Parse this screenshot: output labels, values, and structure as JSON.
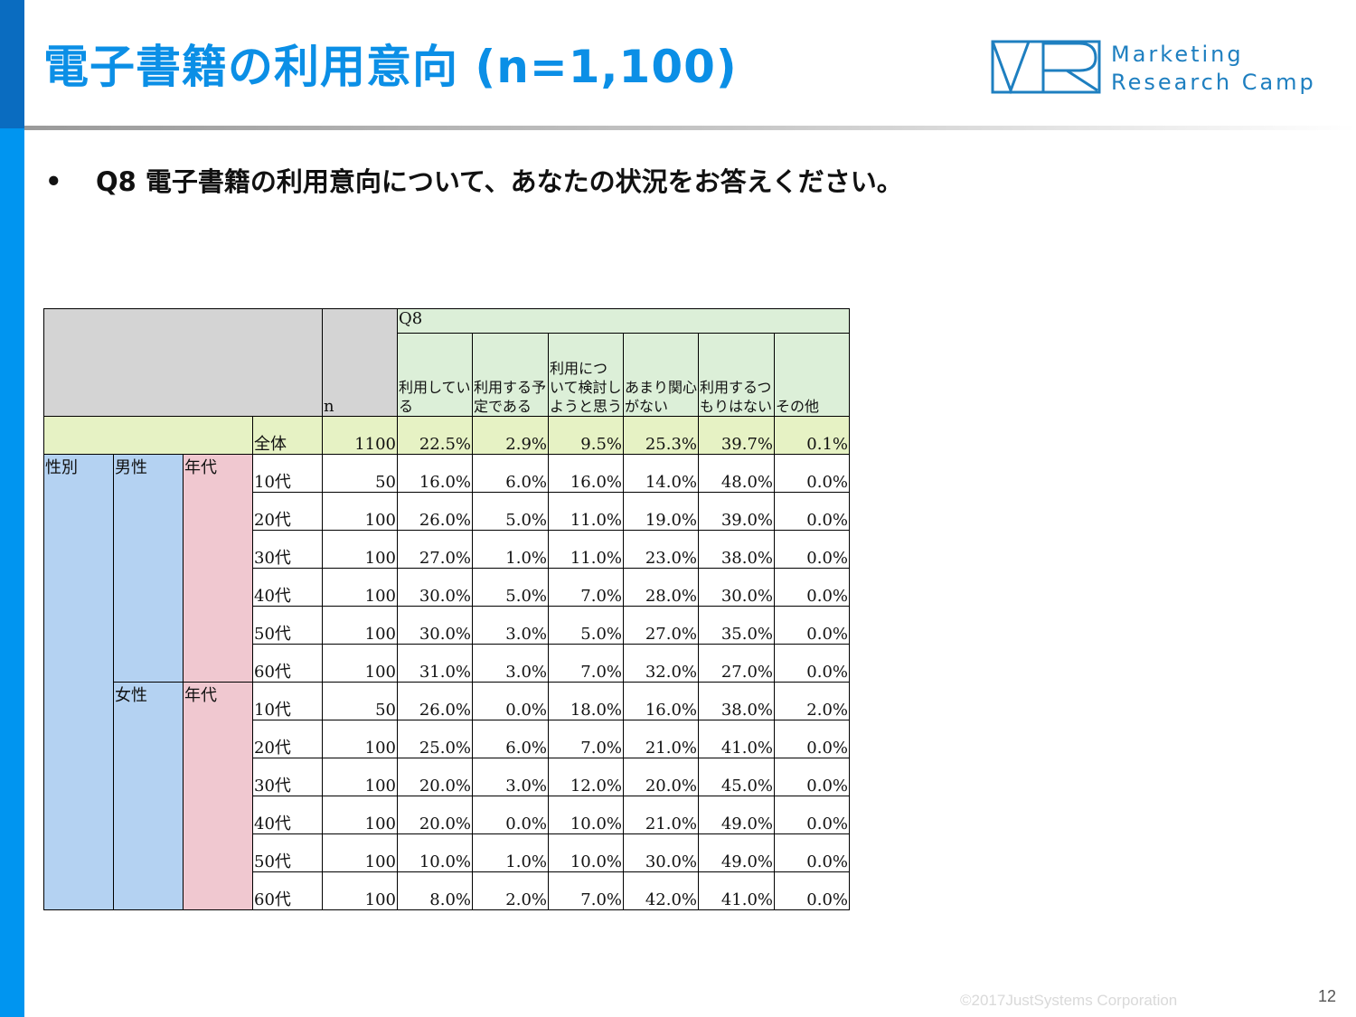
{
  "slide": {
    "title": "電子書籍の利用意向 (n=1,100)",
    "logo_line1": "Marketing",
    "logo_line2": "Research Camp",
    "bullet": "•",
    "question": "Q8 電子書籍の利用意向について、あなたの状況をお答えください。",
    "copyright": "©2017JustSystems Corporation",
    "page_number": "12"
  },
  "colors": {
    "title_blue": "#0b8fe6",
    "sidebar_blue": "#0095f0",
    "header_gray": "#d4d4d4",
    "header_green": "#dcefd8",
    "total_yellow": "#e6f2c4",
    "gender_blue": "#b4d2f2",
    "age_pink": "#f0c8d0"
  },
  "table": {
    "q_label": "Q8",
    "n_label": "n",
    "columns": [
      "利用している",
      "利用する予定である",
      "利用について検討しようと思う",
      "あまり関心がない",
      "利用するつもりはない",
      "その他"
    ],
    "total": {
      "label": "全体",
      "n": "1100",
      "values": [
        "22.5%",
        "2.9%",
        "9.5%",
        "25.3%",
        "39.7%",
        "0.1%"
      ]
    },
    "section_label": "性別",
    "age_label": "年代",
    "groups": [
      {
        "label": "男性",
        "rows": [
          {
            "age": "10代",
            "n": "50",
            "values": [
              "16.0%",
              "6.0%",
              "16.0%",
              "14.0%",
              "48.0%",
              "0.0%"
            ]
          },
          {
            "age": "20代",
            "n": "100",
            "values": [
              "26.0%",
              "5.0%",
              "11.0%",
              "19.0%",
              "39.0%",
              "0.0%"
            ]
          },
          {
            "age": "30代",
            "n": "100",
            "values": [
              "27.0%",
              "1.0%",
              "11.0%",
              "23.0%",
              "38.0%",
              "0.0%"
            ]
          },
          {
            "age": "40代",
            "n": "100",
            "values": [
              "30.0%",
              "5.0%",
              "7.0%",
              "28.0%",
              "30.0%",
              "0.0%"
            ]
          },
          {
            "age": "50代",
            "n": "100",
            "values": [
              "30.0%",
              "3.0%",
              "5.0%",
              "27.0%",
              "35.0%",
              "0.0%"
            ]
          },
          {
            "age": "60代",
            "n": "100",
            "values": [
              "31.0%",
              "3.0%",
              "7.0%",
              "32.0%",
              "27.0%",
              "0.0%"
            ]
          }
        ]
      },
      {
        "label": "女性",
        "rows": [
          {
            "age": "10代",
            "n": "50",
            "values": [
              "26.0%",
              "0.0%",
              "18.0%",
              "16.0%",
              "38.0%",
              "2.0%"
            ]
          },
          {
            "age": "20代",
            "n": "100",
            "values": [
              "25.0%",
              "6.0%",
              "7.0%",
              "21.0%",
              "41.0%",
              "0.0%"
            ]
          },
          {
            "age": "30代",
            "n": "100",
            "values": [
              "20.0%",
              "3.0%",
              "12.0%",
              "20.0%",
              "45.0%",
              "0.0%"
            ]
          },
          {
            "age": "40代",
            "n": "100",
            "values": [
              "20.0%",
              "0.0%",
              "10.0%",
              "21.0%",
              "49.0%",
              "0.0%"
            ]
          },
          {
            "age": "50代",
            "n": "100",
            "values": [
              "10.0%",
              "1.0%",
              "10.0%",
              "30.0%",
              "49.0%",
              "0.0%"
            ]
          },
          {
            "age": "60代",
            "n": "100",
            "values": [
              "8.0%",
              "2.0%",
              "7.0%",
              "42.0%",
              "41.0%",
              "0.0%"
            ]
          }
        ]
      }
    ]
  }
}
